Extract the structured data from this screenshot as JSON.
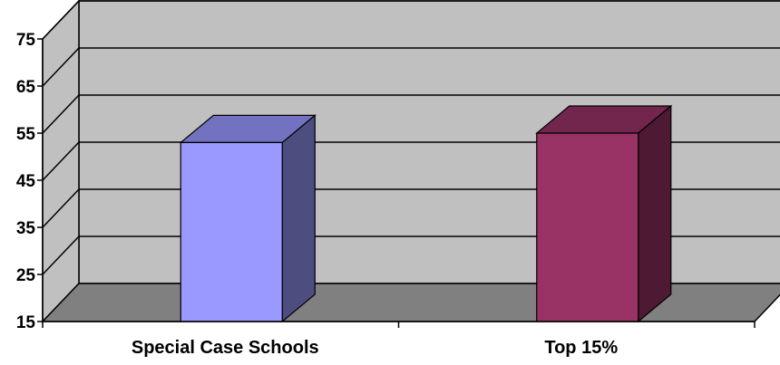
{
  "chart_data": {
    "type": "bar",
    "categories": [
      "Special Case Schools",
      "Top 15%"
    ],
    "values": [
      53,
      55
    ],
    "ylim": [
      15,
      75
    ],
    "yticks": [
      15,
      25,
      35,
      45,
      55,
      65,
      75
    ],
    "grid": true,
    "legend": "none",
    "three_d": true,
    "colors": {
      "bars": [
        {
          "front": "#9999FF",
          "top": "#7272C0",
          "side": "#4D4D80"
        },
        {
          "front": "#993366",
          "top": "#73264D",
          "side": "#4D1933"
        }
      ],
      "wall": "#C0C0C0",
      "floor": "#808080",
      "lines": "#000000"
    }
  }
}
